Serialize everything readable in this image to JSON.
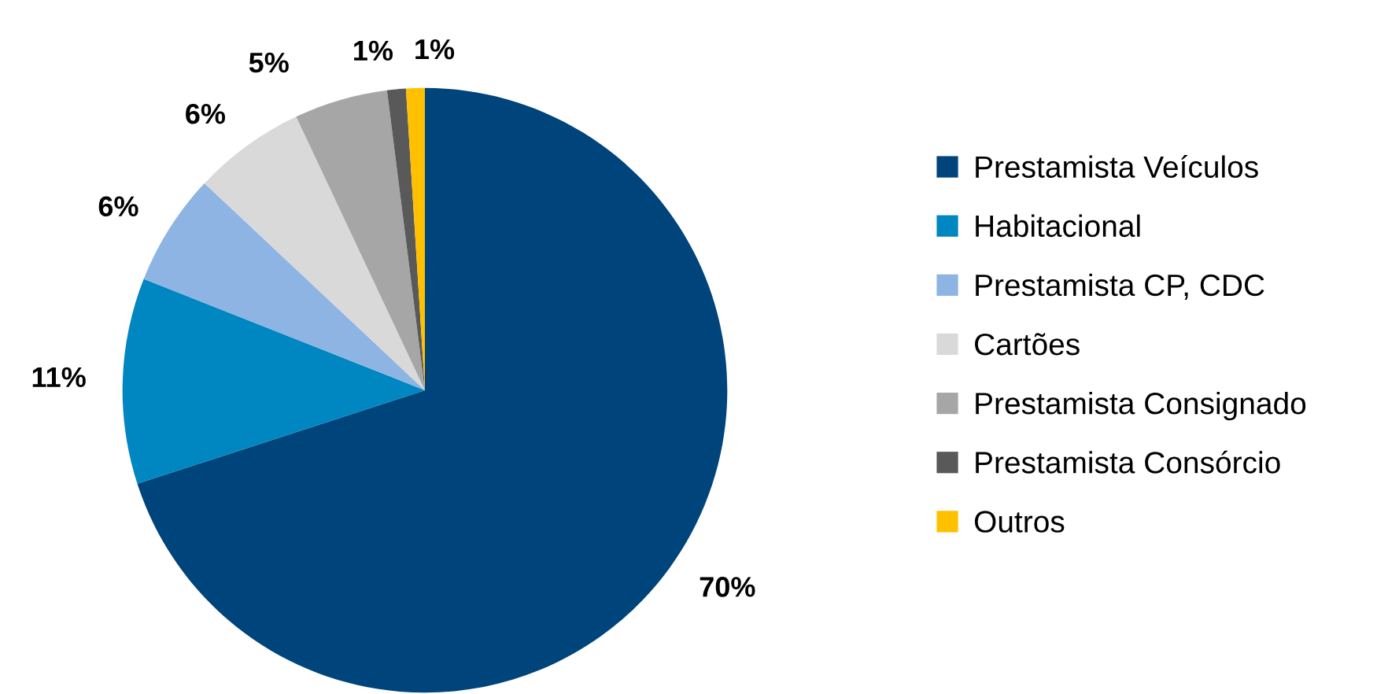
{
  "chart_data": {
    "type": "pie",
    "categories": [
      "Prestamista Veículos",
      "Habitacional",
      "Prestamista CP, CDC",
      "Cartões",
      "Prestamista Consignado",
      "Prestamista Consórcio",
      "Outros"
    ],
    "values": [
      70,
      11,
      6,
      6,
      5,
      1,
      1
    ],
    "colors": [
      "#00447c",
      "#0086c0",
      "#8eb4e3",
      "#d9d9d9",
      "#a6a6a6",
      "#595959",
      "#ffc000"
    ],
    "value_labels": [
      "70%",
      "11%",
      "6%",
      "6%",
      "5%",
      "1%",
      "1%"
    ],
    "legend": "right"
  }
}
